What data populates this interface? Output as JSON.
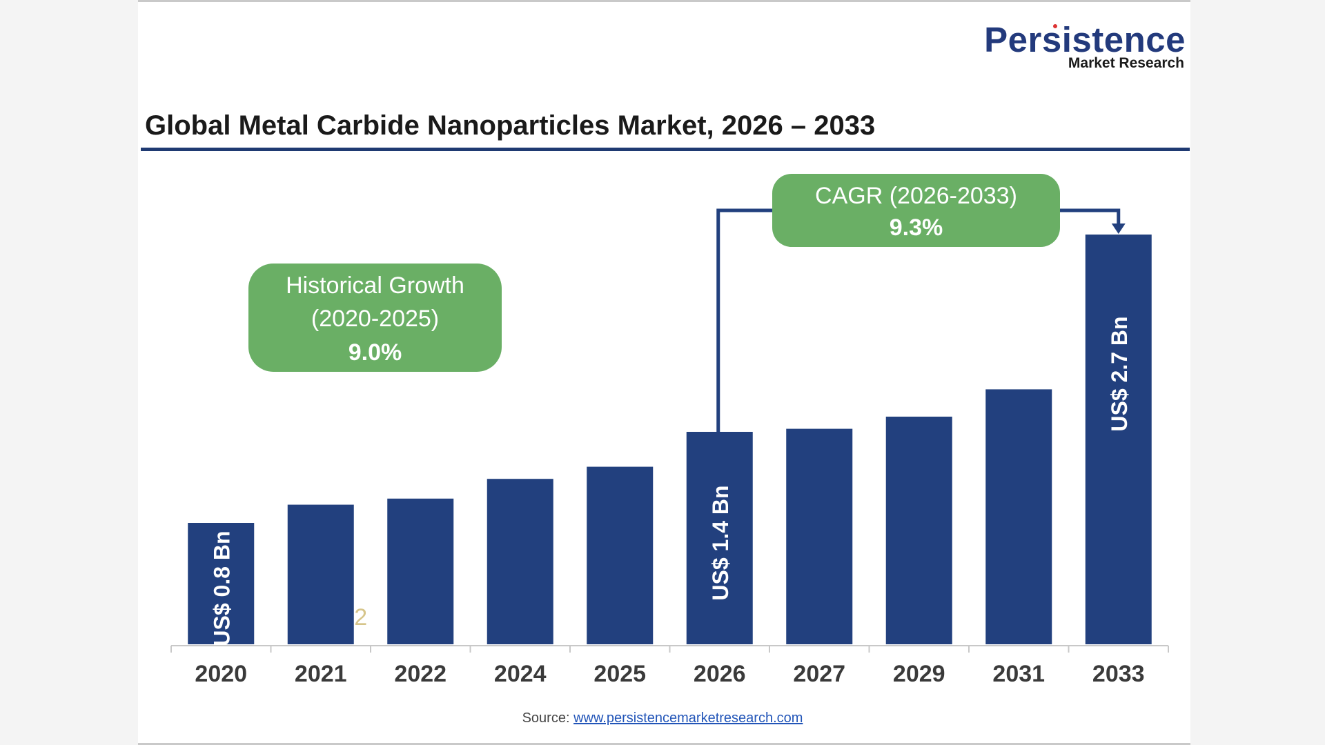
{
  "brand": {
    "name": "Persistence",
    "sub": "Market Research"
  },
  "title": "Global Metal Carbide Nanoparticles Market, 2026 – 2033",
  "source": {
    "label": "Source:",
    "link": "www.persistencemarketresearch.com"
  },
  "colors": {
    "bar": "#22407e",
    "callout": "#6aaf65",
    "axis": "#c8c8c8",
    "title_rule": "#1f3a72"
  },
  "callouts": {
    "historical": {
      "line1": "Historical Growth",
      "line2": "(2020-2025)",
      "value": "9.0%"
    },
    "cagr": {
      "line1": "CAGR (2026-2033)",
      "value": "9.3%"
    }
  },
  "stray_mark": "2",
  "chart_data": {
    "type": "bar",
    "title": "Global Metal Carbide Nanoparticles Market, 2026 – 2033",
    "categories": [
      "2020",
      "2021",
      "2022",
      "2024",
      "2025",
      "2026",
      "2027",
      "2029",
      "2031",
      "2033"
    ],
    "values": [
      0.8,
      0.92,
      0.96,
      1.09,
      1.17,
      1.4,
      1.42,
      1.5,
      1.68,
      2.7
    ],
    "units": "US$ Bn",
    "ylim": [
      0,
      2.7
    ],
    "grid": false,
    "data_labels": [
      {
        "category": "2020",
        "text": "US$ 0.8 Bn"
      },
      {
        "category": "2026",
        "text": "US$ 1.4 Bn"
      },
      {
        "category": "2033",
        "text": "US$ 2.7 Bn"
      }
    ]
  }
}
